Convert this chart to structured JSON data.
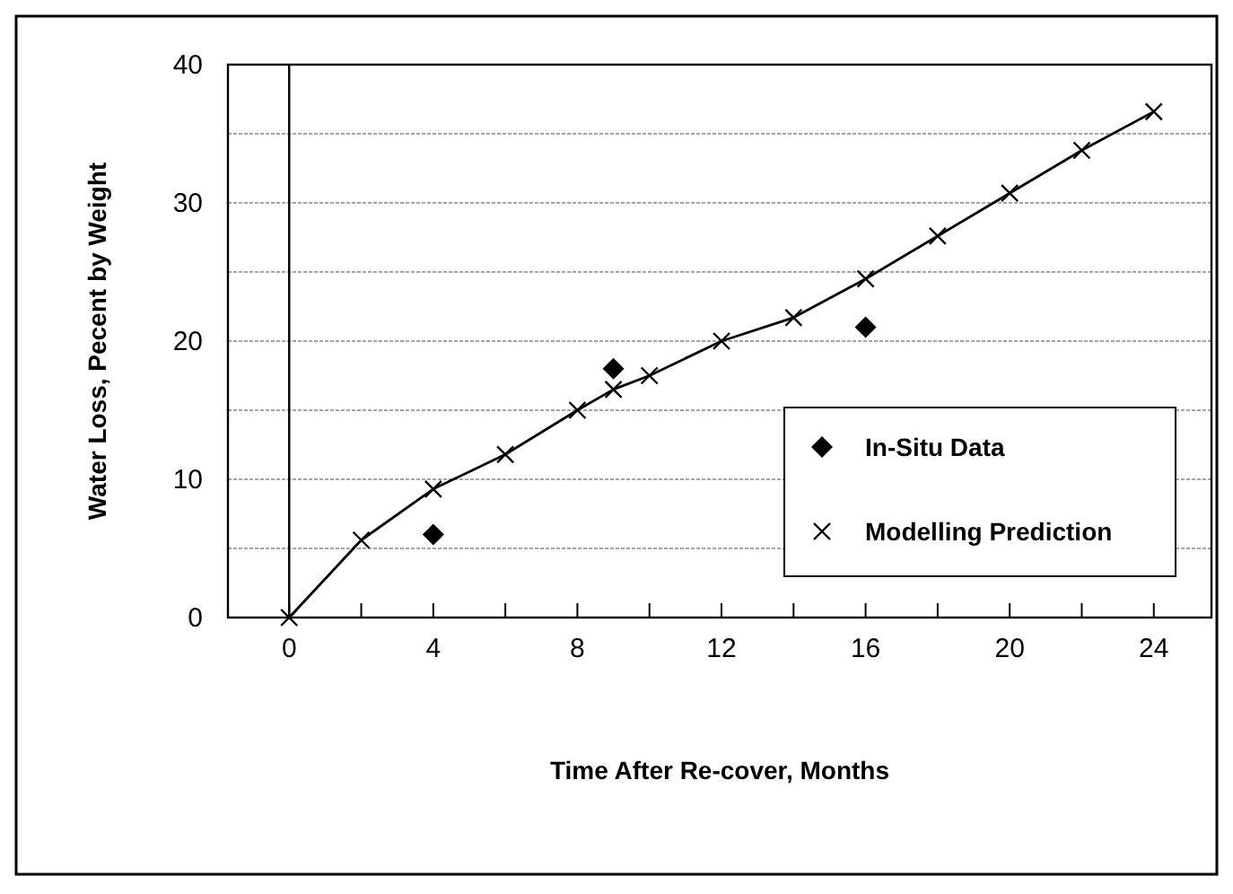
{
  "chart_data": {
    "type": "line",
    "xlabel": "Time After Re-cover, Months",
    "ylabel": "Water Loss, Pecent by Weight",
    "xlim": [
      -1.7,
      25.6
    ],
    "ylim": [
      0,
      40
    ],
    "xticks": [
      0,
      {
        "value": 2,
        "label": null
      },
      4,
      {
        "value": 6,
        "label": null
      },
      8,
      {
        "value": 10,
        "label": null
      },
      12,
      {
        "value": 14,
        "label": null
      },
      16,
      {
        "value": 18,
        "label": null
      },
      20,
      {
        "value": 22,
        "label": null
      },
      24
    ],
    "yticks": [
      0,
      {
        "value": 5,
        "label": null
      },
      10,
      {
        "value": 15,
        "label": null
      },
      20,
      {
        "value": 25,
        "label": null
      },
      30,
      {
        "value": 35,
        "label": null
      },
      40
    ],
    "grid": "y",
    "legend": "bottom right",
    "ref_lines": [
      {
        "axis": "x",
        "value": 0
      }
    ],
    "series": [
      {
        "name": "In-Situ Data",
        "type": "scatter",
        "marker": "diamond",
        "color": "#000000",
        "x": [
          4,
          9,
          16
        ],
        "values": [
          6,
          18,
          21
        ]
      },
      {
        "name": "Modelling Prediction",
        "marker": "cross",
        "line_style": "solid",
        "color": "#000000",
        "x": [
          0,
          2,
          4,
          6,
          8,
          9,
          10,
          12,
          14,
          16,
          18,
          20,
          22,
          24
        ],
        "values": [
          0,
          5.6,
          9.3,
          11.8,
          15,
          16.5,
          17.5,
          20,
          21.7,
          24.5,
          27.6,
          30.7,
          33.8,
          36.6
        ]
      }
    ]
  }
}
